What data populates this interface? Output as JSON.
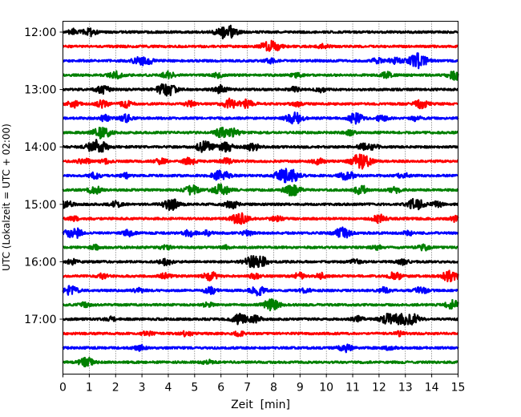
{
  "chart_data": {
    "type": "line",
    "title": "",
    "xlabel": "Zeit  [min]",
    "ylabel": "UTC (Lokalzeit = UTC + 02:00)",
    "xlim": [
      0,
      15
    ],
    "x_ticks": [
      "0",
      "1",
      "2",
      "3",
      "4",
      "5",
      "6",
      "7",
      "8",
      "9",
      "10",
      "11",
      "12",
      "13",
      "14",
      "15"
    ],
    "y_ticks": [
      {
        "label": "12:00",
        "row": 0
      },
      {
        "label": "13:00",
        "row": 4
      },
      {
        "label": "14:00",
        "row": 8
      },
      {
        "label": "15:00",
        "row": 12
      },
      {
        "label": "16:00",
        "row": 16
      },
      {
        "label": "17:00",
        "row": 20
      }
    ],
    "row_interval_minutes": 15,
    "row_count": 24,
    "grid": "vertical-dotted",
    "series_colors": [
      "#000000",
      "#ff0000",
      "#0000ff",
      "#008000"
    ],
    "series": [
      {
        "row": 0,
        "start": "12:00",
        "events": [
          [
            0.4,
            0.5
          ],
          [
            1.0,
            0.7
          ],
          [
            6.1,
            1.0
          ],
          [
            6.4,
            0.7
          ]
        ]
      },
      {
        "row": 1,
        "start": "12:15",
        "events": [
          [
            7.7,
            0.6
          ],
          [
            8.0,
            0.8
          ],
          [
            9.9,
            0.4
          ]
        ]
      },
      {
        "row": 2,
        "start": "12:30",
        "events": [
          [
            2.9,
            0.8
          ],
          [
            3.3,
            0.4
          ],
          [
            7.9,
            0.4
          ],
          [
            11.9,
            0.5
          ],
          [
            12.6,
            0.6
          ],
          [
            13.4,
            1.0
          ],
          [
            13.6,
            0.7
          ]
        ]
      },
      {
        "row": 3,
        "start": "12:45",
        "events": [
          [
            2.0,
            0.6
          ],
          [
            4.0,
            0.6
          ],
          [
            5.9,
            0.4
          ],
          [
            8.9,
            0.4
          ],
          [
            12.3,
            0.5
          ],
          [
            14.9,
            0.8
          ]
        ]
      },
      {
        "row": 4,
        "start": "13:00",
        "events": [
          [
            1.5,
            0.7
          ],
          [
            3.7,
            0.5
          ],
          [
            4.0,
            1.0
          ],
          [
            6.0,
            0.7
          ],
          [
            8.8,
            0.4
          ],
          [
            9.8,
            0.4
          ]
        ]
      },
      {
        "row": 5,
        "start": "13:15",
        "events": [
          [
            0.4,
            0.6
          ],
          [
            1.5,
            0.6
          ],
          [
            2.4,
            0.6
          ],
          [
            4.8,
            0.5
          ],
          [
            6.3,
            0.9
          ],
          [
            7.0,
            0.8
          ],
          [
            8.9,
            0.4
          ],
          [
            13.6,
            0.7
          ]
        ]
      },
      {
        "row": 6,
        "start": "13:30",
        "events": [
          [
            1.6,
            0.5
          ],
          [
            2.4,
            0.6
          ],
          [
            8.8,
            1.0
          ],
          [
            11.1,
            0.9
          ],
          [
            12.1,
            0.5
          ],
          [
            13.4,
            0.4
          ]
        ]
      },
      {
        "row": 7,
        "start": "13:45",
        "events": [
          [
            1.3,
            0.6
          ],
          [
            1.6,
            0.8
          ],
          [
            6.0,
            0.8
          ],
          [
            6.5,
            0.6
          ],
          [
            10.9,
            0.4
          ]
        ]
      },
      {
        "row": 8,
        "start": "14:00",
        "events": [
          [
            1.2,
            1.0
          ],
          [
            1.5,
            0.7
          ],
          [
            5.4,
            1.0
          ],
          [
            6.2,
            0.8
          ],
          [
            7.2,
            0.7
          ],
          [
            11.4,
            0.5
          ],
          [
            11.8,
            0.4
          ]
        ]
      },
      {
        "row": 9,
        "start": "14:15",
        "events": [
          [
            0.8,
            0.5
          ],
          [
            1.6,
            0.4
          ],
          [
            3.7,
            0.5
          ],
          [
            4.8,
            0.6
          ],
          [
            6.2,
            0.5
          ],
          [
            9.7,
            0.5
          ],
          [
            11.2,
            1.0
          ],
          [
            11.5,
            0.7
          ]
        ]
      },
      {
        "row": 10,
        "start": "14:30",
        "events": [
          [
            1.2,
            0.5
          ],
          [
            2.4,
            0.4
          ],
          [
            6.0,
            1.0
          ],
          [
            8.3,
            0.9
          ],
          [
            8.7,
            1.0
          ],
          [
            10.8,
            0.8
          ],
          [
            12.9,
            0.5
          ]
        ]
      },
      {
        "row": 11,
        "start": "14:45",
        "events": [
          [
            1.2,
            0.7
          ],
          [
            4.9,
            0.8
          ],
          [
            6.0,
            1.0
          ],
          [
            8.7,
            1.0
          ],
          [
            11.3,
            0.8
          ],
          [
            12.6,
            0.5
          ]
        ]
      },
      {
        "row": 12,
        "start": "15:00",
        "events": [
          [
            0.1,
            0.7
          ],
          [
            2.0,
            0.5
          ],
          [
            4.1,
            1.0
          ],
          [
            6.4,
            0.7
          ],
          [
            13.4,
            1.0
          ],
          [
            14.2,
            0.5
          ]
        ]
      },
      {
        "row": 13,
        "start": "15:15",
        "events": [
          [
            0.4,
            0.4
          ],
          [
            6.7,
            1.0
          ],
          [
            8.1,
            0.5
          ],
          [
            12.0,
            0.7
          ],
          [
            14.9,
            0.5
          ]
        ]
      },
      {
        "row": 14,
        "start": "15:30",
        "events": [
          [
            0.4,
            1.0
          ],
          [
            2.5,
            0.5
          ],
          [
            4.8,
            0.6
          ],
          [
            5.5,
            0.4
          ],
          [
            7.0,
            0.4
          ],
          [
            10.6,
            1.0
          ],
          [
            13.1,
            0.4
          ]
        ]
      },
      {
        "row": 15,
        "start": "15:45",
        "events": [
          [
            1.2,
            0.4
          ],
          [
            3.9,
            0.4
          ],
          [
            6.2,
            0.3
          ],
          [
            11.9,
            0.4
          ],
          [
            13.7,
            0.5
          ]
        ]
      },
      {
        "row": 16,
        "start": "16:00",
        "events": [
          [
            0.3,
            0.5
          ],
          [
            3.9,
            0.6
          ],
          [
            7.2,
            1.0
          ],
          [
            7.6,
            0.6
          ],
          [
            11.1,
            0.4
          ],
          [
            12.9,
            0.5
          ]
        ]
      },
      {
        "row": 17,
        "start": "16:15",
        "events": [
          [
            1.5,
            0.4
          ],
          [
            3.9,
            0.5
          ],
          [
            5.6,
            0.8
          ],
          [
            7.3,
            0.5
          ],
          [
            9.0,
            0.6
          ],
          [
            9.8,
            0.5
          ],
          [
            12.6,
            0.7
          ],
          [
            14.7,
            1.0
          ]
        ]
      },
      {
        "row": 18,
        "start": "16:30",
        "events": [
          [
            0.3,
            0.8
          ],
          [
            2.9,
            0.4
          ],
          [
            5.6,
            0.6
          ],
          [
            7.4,
            0.8
          ],
          [
            9.2,
            0.4
          ],
          [
            12.2,
            0.5
          ],
          [
            13.6,
            0.6
          ]
        ]
      },
      {
        "row": 19,
        "start": "16:45",
        "events": [
          [
            0.8,
            0.4
          ],
          [
            5.5,
            0.4
          ],
          [
            7.9,
            1.0
          ],
          [
            14.8,
            0.8
          ]
        ]
      },
      {
        "row": 20,
        "start": "17:00",
        "events": [
          [
            1.8,
            0.4
          ],
          [
            6.7,
            0.9
          ],
          [
            7.3,
            0.6
          ],
          [
            11.2,
            0.5
          ],
          [
            12.3,
            0.8
          ],
          [
            12.8,
            1.0
          ],
          [
            13.3,
            0.8
          ]
        ]
      },
      {
        "row": 21,
        "start": "17:15",
        "events": [
          [
            3.2,
            0.4
          ],
          [
            4.7,
            0.5
          ],
          [
            6.7,
            0.4
          ],
          [
            12.8,
            0.4
          ]
        ]
      },
      {
        "row": 22,
        "start": "17:30",
        "events": [
          [
            2.9,
            0.5
          ],
          [
            10.7,
            0.7
          ],
          [
            12.4,
            0.4
          ]
        ]
      },
      {
        "row": 23,
        "start": "17:45",
        "events": [
          [
            0.9,
            0.8
          ],
          [
            5.5,
            0.4
          ]
        ]
      }
    ]
  }
}
